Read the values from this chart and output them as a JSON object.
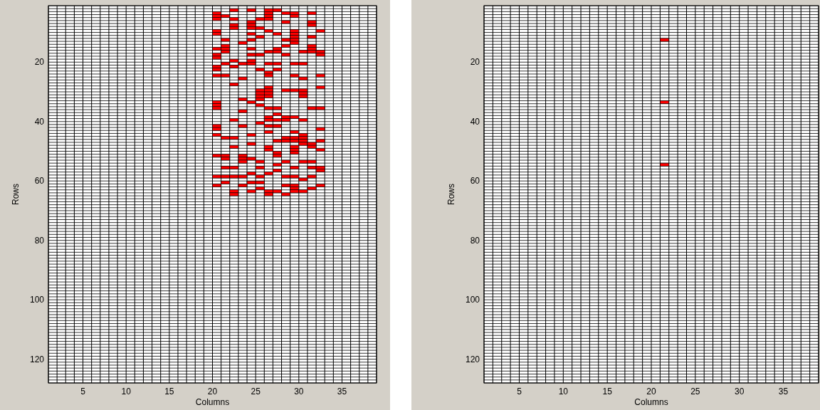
{
  "chart_data": [
    {
      "type": "scatter",
      "xlabel": "Columns",
      "ylabel": "Rows",
      "xlim": [
        1,
        39
      ],
      "ylim": [
        128,
        1
      ],
      "xticks": [
        5,
        10,
        15,
        20,
        25,
        30,
        35
      ],
      "yticks": [
        20,
        40,
        60,
        80,
        100,
        120
      ],
      "grid": true,
      "marker": "square",
      "series": [
        {
          "color": "#ff0000",
          "x": [
            22.5,
            24.5,
            26.5,
            27.5,
            20.5,
            26.5,
            28.5,
            29.5,
            31.5,
            20.5,
            21.5,
            26.5,
            29.5,
            20.5,
            22.5,
            25.5,
            26.5,
            24.5,
            28.5,
            31.5,
            22.5,
            24.5,
            31.5,
            22.5,
            24.5,
            25.5,
            20.5,
            26.5,
            29.5,
            32.5,
            20.5,
            24.5,
            27.5,
            29.5,
            25.5,
            29.5,
            31.5,
            21.5,
            24.5,
            28.5,
            29.5,
            23.5,
            29.5,
            21.5,
            28.5,
            31.5,
            20.5,
            21.5,
            24.5,
            27.5,
            31.5,
            21.5,
            26.5,
            27.5,
            30.5,
            31.5,
            32.5,
            20.5,
            24.5,
            25.5,
            28.5,
            32.5,
            20.5,
            22.5,
            24.5,
            21.5,
            23.5,
            24.5,
            26.5,
            27.5,
            29.5,
            30.5,
            20.5,
            22.5,
            20.5,
            25.5,
            27.5,
            26.5,
            20.5,
            21.5,
            26.5,
            29.5,
            32.5,
            23.5,
            30.5,
            22.5,
            26.5,
            32.5,
            25.5,
            26.5,
            28.5,
            29.5,
            30.5,
            25.5,
            26.5,
            30.5,
            25.5,
            26.5,
            30.5,
            23.5,
            25.5,
            20.5,
            24.5,
            20.5,
            25.5,
            20.5,
            26.5,
            27.5,
            31.5,
            32.5,
            23.5,
            27.5,
            26.5,
            28.5,
            29.5,
            22.5,
            26.5,
            27.5,
            28.5,
            30.5,
            25.5,
            20.5,
            23.5,
            26.5,
            27.5,
            20.5,
            32.5,
            26.5,
            29.5,
            20.5,
            24.5,
            30.5,
            21.5,
            22.5,
            28.5,
            29.5,
            30.5,
            27.5,
            28.5,
            29.5,
            30.5,
            32.5,
            24.5,
            30.5,
            31.5,
            22.5,
            26.5,
            29.5,
            31.5,
            26.5,
            29.5,
            32.5,
            27.5,
            29.5,
            20.5,
            21.5,
            23.5,
            27.5,
            21.5,
            23.5,
            24.5,
            23.5,
            25.5,
            28.5,
            30.5,
            31.5,
            27.5,
            21.5,
            22.5,
            25.5,
            29.5,
            31.5,
            32.5,
            27.5,
            32.5,
            24.5,
            26.5,
            20.5,
            21.5,
            22.5,
            23.5,
            25.5,
            28.5,
            29.5,
            31.5,
            30.5,
            21.5,
            24.5,
            25.5,
            20.5,
            23.5,
            28.5,
            29.5,
            32.5,
            25.5,
            29.5,
            31.5,
            22.5,
            24.5,
            26.5,
            27.5,
            29.5,
            30.5,
            22.5,
            26.5,
            28.5
          ],
          "values": [
            2.5,
            2.5,
            2.5,
            2.5,
            3.5,
            3.5,
            3.5,
            3.5,
            3.5,
            4.5,
            4.5,
            4.5,
            4.5,
            5.5,
            5.5,
            5.5,
            5.5,
            6.5,
            6.5,
            6.5,
            7.5,
            7.5,
            7.5,
            8.5,
            8.5,
            8.5,
            9.5,
            9.5,
            9.5,
            9.5,
            10.5,
            10.5,
            10.5,
            10.5,
            11.5,
            11.5,
            11.5,
            12.5,
            12.5,
            12.5,
            12.5,
            13.5,
            13.5,
            14.5,
            14.5,
            14.5,
            15.5,
            15.5,
            15.5,
            15.5,
            15.5,
            16.5,
            16.5,
            16.5,
            16.5,
            16.5,
            16.5,
            17.5,
            17.5,
            17.5,
            17.5,
            17.5,
            18.5,
            19.5,
            19.5,
            20.5,
            20.5,
            20.5,
            20.5,
            20.5,
            20.5,
            20.5,
            21.5,
            21.5,
            22.5,
            22.5,
            22.5,
            23.5,
            24.5,
            24.5,
            24.5,
            24.5,
            24.5,
            25.5,
            25.5,
            27.5,
            28.5,
            28.5,
            29.5,
            29.5,
            29.5,
            29.5,
            29.5,
            30.5,
            30.5,
            30.5,
            31.5,
            31.5,
            31.5,
            32.5,
            32.5,
            33.5,
            33.5,
            34.5,
            34.5,
            35.5,
            35.5,
            35.5,
            35.5,
            35.5,
            36.5,
            37.5,
            38.5,
            38.5,
            38.5,
            39.5,
            39.5,
            39.5,
            39.5,
            39.5,
            40.5,
            41.5,
            41.5,
            41.5,
            41.5,
            42.5,
            42.5,
            43.5,
            43.5,
            44.5,
            44.5,
            44.5,
            45.5,
            45.5,
            45.5,
            45.5,
            45.5,
            46.5,
            46.5,
            46.5,
            46.5,
            46.5,
            47.5,
            47.5,
            47.5,
            48.5,
            48.5,
            48.5,
            48.5,
            49.5,
            49.5,
            49.5,
            50.5,
            50.5,
            51.5,
            51.5,
            51.5,
            51.5,
            52.5,
            52.5,
            52.5,
            53.5,
            53.5,
            53.5,
            53.5,
            53.5,
            54.5,
            55.5,
            55.5,
            55.5,
            55.5,
            55.5,
            55.5,
            56.5,
            56.5,
            57.5,
            57.5,
            58.5,
            58.5,
            58.5,
            58.5,
            58.5,
            58.5,
            58.5,
            58.5,
            59.5,
            60.5,
            60.5,
            60.5,
            61.5,
            61.5,
            61.5,
            61.5,
            61.5,
            62.5,
            62.5,
            62.5,
            63.5,
            63.5,
            63.5,
            63.5,
            63.5,
            63.5,
            64.5,
            64.5,
            64.5
          ]
        }
      ]
    },
    {
      "type": "scatter",
      "xlabel": "Columns",
      "ylabel": "Rows",
      "xlim": [
        1,
        39
      ],
      "ylim": [
        128,
        1
      ],
      "xticks": [
        5,
        10,
        15,
        20,
        25,
        30,
        35
      ],
      "yticks": [
        20,
        40,
        60,
        80,
        100,
        120
      ],
      "grid": true,
      "marker": "square",
      "series": [
        {
          "color": "#ff0000",
          "x": [
            21.5,
            21.5,
            21.5
          ],
          "values": [
            12.5,
            33.5,
            54.5
          ]
        }
      ]
    }
  ]
}
